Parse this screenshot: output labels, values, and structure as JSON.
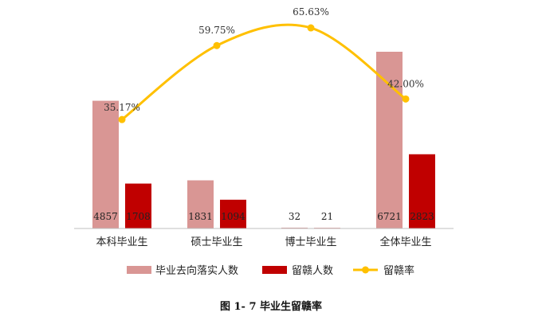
{
  "chart_data": {
    "type": "bar",
    "categories": [
      "本科毕业生",
      "硕士毕业生",
      "博士毕业生",
      "全体毕业生"
    ],
    "series": [
      {
        "name": "毕业去向落实人数",
        "type": "bar",
        "values": [
          4857,
          1831,
          32,
          6721
        ],
        "color": "#d99694"
      },
      {
        "name": "留赣人数",
        "type": "bar",
        "values": [
          1708,
          1094,
          21,
          2823
        ],
        "color": "#c00000"
      },
      {
        "name": "留赣率",
        "type": "line",
        "values": [
          35.17,
          59.75,
          65.63,
          42.0
        ],
        "labels": [
          "35.17%",
          "59.75%",
          "65.63%",
          "42.00%"
        ],
        "color": "#ffc000"
      }
    ],
    "legend_position": "bottom",
    "grid": false
  },
  "caption": "图 1- 7 毕业生留赣率"
}
